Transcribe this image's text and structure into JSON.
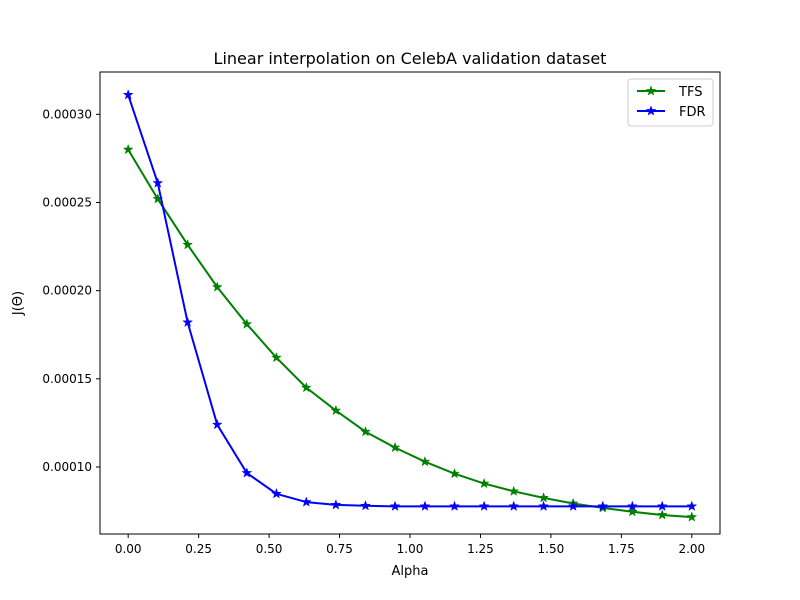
{
  "chart_data": {
    "type": "line",
    "title": "Linear interpolation on CelebA validation dataset",
    "xlabel": "Alpha",
    "ylabel": "J(Θ)",
    "xlim": [
      -0.1,
      2.1
    ],
    "ylim": [
      6.2e-05,
      0.000324
    ],
    "xticks": [
      0.0,
      0.25,
      0.5,
      0.75,
      1.0,
      1.25,
      1.5,
      1.75,
      2.0
    ],
    "xtick_labels": [
      "0.00",
      "0.25",
      "0.50",
      "0.75",
      "1.00",
      "1.25",
      "1.50",
      "1.75",
      "2.00"
    ],
    "yticks": [
      0.0001,
      0.00015,
      0.0002,
      0.00025,
      0.0003
    ],
    "ytick_labels": [
      "0.00010",
      "0.00015",
      "0.00020",
      "0.00025",
      "0.00030"
    ],
    "grid": false,
    "legend_position": "top-right",
    "x": [
      0.0,
      0.105,
      0.211,
      0.316,
      0.421,
      0.526,
      0.632,
      0.737,
      0.842,
      0.947,
      1.053,
      1.158,
      1.263,
      1.368,
      1.474,
      1.579,
      1.684,
      1.789,
      1.895,
      2.0
    ],
    "series": [
      {
        "name": "TFS",
        "color": "#008000",
        "marker": "star",
        "values": [
          0.00028,
          0.000252,
          0.000226,
          0.000202,
          0.000181,
          0.000162,
          0.000145,
          0.000132,
          0.00012,
          0.000111,
          0.000103,
          9.62e-05,
          9.06e-05,
          8.62e-05,
          8.25e-05,
          7.93e-05,
          7.68e-05,
          7.46e-05,
          7.28e-05,
          7.16e-05
        ]
      },
      {
        "name": "FDR",
        "color": "#0000ff",
        "marker": "star",
        "values": [
          0.000311,
          0.000261,
          0.000182,
          0.000124,
          9.66e-05,
          8.48e-05,
          8.01e-05,
          7.85e-05,
          7.8e-05,
          7.77e-05,
          7.77e-05,
          7.77e-05,
          7.77e-05,
          7.77e-05,
          7.77e-05,
          7.77e-05,
          7.77e-05,
          7.77e-05,
          7.77e-05,
          7.77e-05
        ]
      }
    ]
  }
}
